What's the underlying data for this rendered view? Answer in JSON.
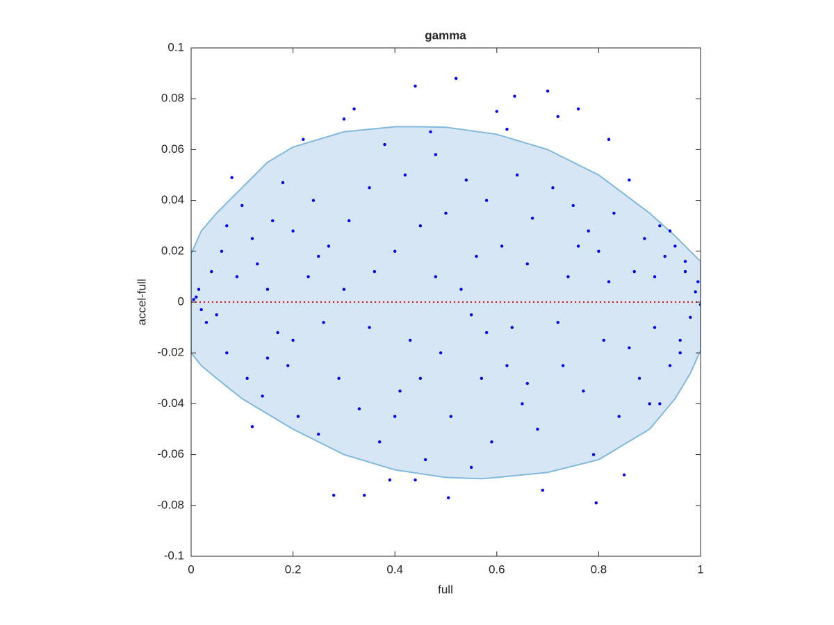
{
  "chart_data": {
    "type": "scatter",
    "title": "gamma",
    "xlabel": "full",
    "ylabel": "accel-full",
    "xlim": [
      0,
      1
    ],
    "ylim": [
      -0.1,
      0.1
    ],
    "xticks": [
      0,
      0.2,
      0.4,
      0.6,
      0.8,
      1
    ],
    "yticks": [
      -0.1,
      -0.08,
      -0.06,
      -0.04,
      -0.02,
      0,
      0.02,
      0.04,
      0.06,
      0.08,
      0.1
    ],
    "grid": false,
    "series": [
      {
        "type": "scatter",
        "color": "#0000ff",
        "x": [
          0.52,
          0.44,
          0.7,
          0.635,
          0.32,
          0.76,
          0.3,
          0.6,
          0.72,
          0.08,
          0.12,
          0.28,
          0.34,
          0.505,
          0.795,
          0.69,
          0.85,
          0.39,
          0.44,
          0.82,
          0.22,
          0.47,
          0.01,
          0.02,
          0.005,
          0.015,
          0.03,
          0.04,
          0.99,
          1.0,
          0.995,
          0.98,
          0.97,
          0.96,
          0.95,
          0.94,
          0.93,
          0.92,
          0.91,
          0.9,
          0.06,
          0.07,
          0.09,
          0.1,
          0.11,
          0.13,
          0.14,
          0.15,
          0.16,
          0.17,
          0.18,
          0.19,
          0.2,
          0.21,
          0.23,
          0.24,
          0.25,
          0.26,
          0.27,
          0.29,
          0.31,
          0.33,
          0.35,
          0.36,
          0.37,
          0.38,
          0.4,
          0.41,
          0.42,
          0.43,
          0.45,
          0.46,
          0.48,
          0.49,
          0.5,
          0.51,
          0.53,
          0.54,
          0.55,
          0.56,
          0.57,
          0.58,
          0.59,
          0.61,
          0.62,
          0.63,
          0.64,
          0.65,
          0.66,
          0.67,
          0.68,
          0.71,
          0.73,
          0.74,
          0.75,
          0.77,
          0.78,
          0.79,
          0.8,
          0.81,
          0.83,
          0.84,
          0.86,
          0.87,
          0.88,
          0.89,
          0.92,
          0.94,
          0.96,
          0.97,
          0.05,
          0.12,
          0.2,
          0.3,
          0.35,
          0.45,
          0.55,
          0.62,
          0.72,
          0.82,
          0.15,
          0.25,
          0.4,
          0.48,
          0.58,
          0.66,
          0.76,
          0.86,
          0.91,
          0.07
        ],
        "values": [
          0.088,
          0.085,
          0.083,
          0.081,
          0.076,
          0.076,
          0.072,
          0.075,
          0.073,
          0.049,
          -0.049,
          -0.076,
          -0.076,
          -0.077,
          -0.079,
          -0.074,
          -0.068,
          -0.07,
          -0.07,
          0.064,
          0.064,
          0.067,
          0.002,
          -0.003,
          0.001,
          0.005,
          -0.008,
          0.012,
          0.004,
          -0.001,
          0.008,
          -0.006,
          0.012,
          -0.015,
          0.022,
          -0.025,
          0.018,
          0.03,
          -0.01,
          -0.04,
          0.02,
          -0.02,
          0.01,
          0.038,
          -0.03,
          0.015,
          -0.037,
          0.005,
          0.032,
          -0.012,
          0.047,
          -0.025,
          0.028,
          -0.045,
          0.01,
          0.04,
          -0.052,
          -0.008,
          0.022,
          -0.03,
          0.032,
          -0.042,
          0.045,
          0.012,
          -0.055,
          0.062,
          0.02,
          -0.035,
          0.05,
          -0.015,
          0.03,
          -0.062,
          0.058,
          -0.02,
          0.035,
          -0.045,
          0.005,
          0.048,
          -0.065,
          0.018,
          -0.03,
          0.04,
          -0.055,
          0.022,
          0.068,
          -0.01,
          0.05,
          -0.04,
          0.015,
          0.033,
          -0.05,
          0.045,
          -0.025,
          0.01,
          0.038,
          -0.035,
          0.028,
          -0.06,
          0.02,
          -0.015,
          0.035,
          -0.045,
          0.048,
          0.012,
          -0.03,
          0.025,
          -0.04,
          0.028,
          -0.02,
          0.016,
          -0.005,
          0.025,
          -0.015,
          0.005,
          -0.01,
          -0.03,
          -0.005,
          -0.025,
          -0.008,
          0.008,
          -0.022,
          0.018,
          -0.045,
          0.01,
          -0.012,
          -0.032,
          0.022,
          -0.018,
          0.01,
          0.03
        ]
      },
      {
        "type": "area",
        "color": "#d6e6f4",
        "edge_color": "#82b8dc",
        "x": [
          0,
          0.02,
          0.05,
          0.1,
          0.15,
          0.2,
          0.3,
          0.4,
          0.45,
          0.5,
          0.6,
          0.7,
          0.8,
          0.9,
          0.95,
          1,
          1,
          0.98,
          0.95,
          0.9,
          0.8,
          0.7,
          0.6,
          0.57,
          0.5,
          0.4,
          0.3,
          0.2,
          0.1,
          0.05,
          0.02,
          0
        ],
        "values": [
          0.019,
          0.028,
          0.035,
          0.045,
          0.055,
          0.061,
          0.067,
          0.069,
          0.069,
          0.0688,
          0.066,
          0.06,
          0.05,
          0.035,
          0.026,
          0.016,
          -0.019,
          -0.028,
          -0.038,
          -0.05,
          -0.062,
          -0.067,
          -0.069,
          -0.0695,
          -0.069,
          -0.066,
          -0.06,
          -0.05,
          -0.038,
          -0.03,
          -0.025,
          -0.02
        ]
      },
      {
        "type": "line",
        "color": "#ff0000",
        "dash": "dotted",
        "x": [
          0,
          1
        ],
        "values": [
          0,
          0
        ]
      }
    ]
  }
}
